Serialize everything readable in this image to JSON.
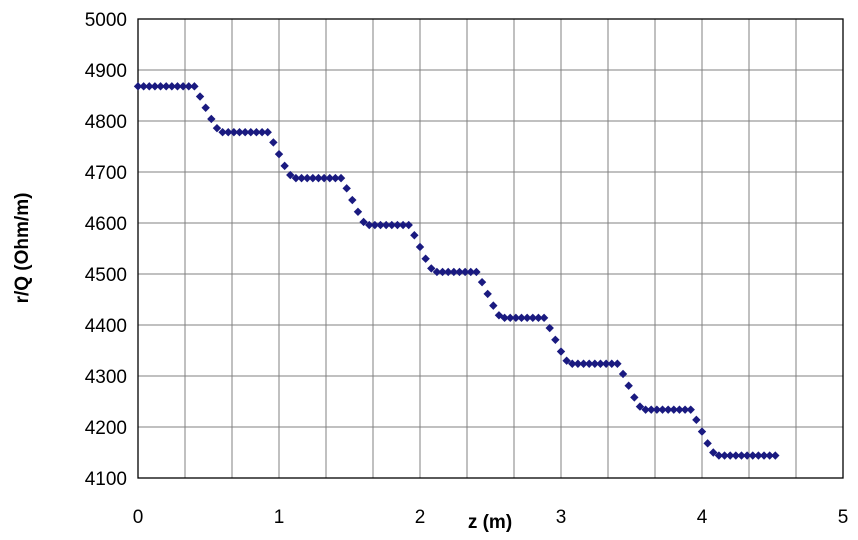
{
  "chart_data": {
    "type": "scatter",
    "title": "",
    "xlabel": "z (m)",
    "ylabel": "r/Q (Ohm/m)",
    "xlim": [
      0,
      5
    ],
    "ylim": [
      4100,
      5000
    ],
    "x_ticks": [
      "0",
      "1",
      "2",
      "3",
      "4",
      "5"
    ],
    "y_ticks": [
      "4100",
      "4200",
      "4300",
      "4400",
      "4500",
      "4600",
      "4700",
      "4800",
      "4900",
      "5000"
    ],
    "x_gridlines": 15,
    "y_gridlines": 9,
    "grid": true,
    "legend": "none",
    "colors": {
      "marker": "#1a1a80",
      "grid": "#808080",
      "plot_border": "#000000"
    },
    "marker": "diamond",
    "series": [
      {
        "values": [
          [
            0.0,
            4868
          ],
          [
            0.04,
            4868
          ],
          [
            0.08,
            4868
          ],
          [
            0.12,
            4868
          ],
          [
            0.16,
            4868
          ],
          [
            0.2,
            4868
          ],
          [
            0.24,
            4868
          ],
          [
            0.28,
            4868
          ],
          [
            0.32,
            4868
          ],
          [
            0.36,
            4868
          ],
          [
            0.4,
            4868
          ],
          [
            0.44,
            4848
          ],
          [
            0.48,
            4826
          ],
          [
            0.52,
            4804
          ],
          [
            0.56,
            4786
          ],
          [
            0.6,
            4778
          ],
          [
            0.64,
            4778
          ],
          [
            0.68,
            4778
          ],
          [
            0.72,
            4778
          ],
          [
            0.76,
            4778
          ],
          [
            0.8,
            4778
          ],
          [
            0.84,
            4778
          ],
          [
            0.88,
            4778
          ],
          [
            0.92,
            4778
          ],
          [
            0.96,
            4758
          ],
          [
            1.0,
            4735
          ],
          [
            1.04,
            4712
          ],
          [
            1.08,
            4694
          ],
          [
            1.12,
            4688
          ],
          [
            1.16,
            4688
          ],
          [
            1.2,
            4688
          ],
          [
            1.24,
            4688
          ],
          [
            1.28,
            4688
          ],
          [
            1.32,
            4688
          ],
          [
            1.36,
            4688
          ],
          [
            1.4,
            4688
          ],
          [
            1.44,
            4688
          ],
          [
            1.48,
            4668
          ],
          [
            1.52,
            4645
          ],
          [
            1.56,
            4622
          ],
          [
            1.6,
            4602
          ],
          [
            1.64,
            4596
          ],
          [
            1.68,
            4596
          ],
          [
            1.72,
            4596
          ],
          [
            1.76,
            4596
          ],
          [
            1.8,
            4596
          ],
          [
            1.84,
            4596
          ],
          [
            1.88,
            4596
          ],
          [
            1.92,
            4596
          ],
          [
            1.96,
            4576
          ],
          [
            2.0,
            4553
          ],
          [
            2.04,
            4530
          ],
          [
            2.08,
            4511
          ],
          [
            2.12,
            4504
          ],
          [
            2.16,
            4504
          ],
          [
            2.2,
            4504
          ],
          [
            2.24,
            4504
          ],
          [
            2.28,
            4504
          ],
          [
            2.32,
            4504
          ],
          [
            2.36,
            4504
          ],
          [
            2.4,
            4504
          ],
          [
            2.44,
            4484
          ],
          [
            2.48,
            4461
          ],
          [
            2.52,
            4438
          ],
          [
            2.56,
            4419
          ],
          [
            2.6,
            4414
          ],
          [
            2.64,
            4414
          ],
          [
            2.68,
            4414
          ],
          [
            2.72,
            4414
          ],
          [
            2.76,
            4414
          ],
          [
            2.8,
            4414
          ],
          [
            2.84,
            4414
          ],
          [
            2.88,
            4414
          ],
          [
            2.92,
            4394
          ],
          [
            2.96,
            4371
          ],
          [
            3.0,
            4348
          ],
          [
            3.04,
            4330
          ],
          [
            3.08,
            4324
          ],
          [
            3.12,
            4324
          ],
          [
            3.16,
            4324
          ],
          [
            3.2,
            4324
          ],
          [
            3.24,
            4324
          ],
          [
            3.28,
            4324
          ],
          [
            3.32,
            4324
          ],
          [
            3.36,
            4324
          ],
          [
            3.4,
            4324
          ],
          [
            3.44,
            4304
          ],
          [
            3.48,
            4281
          ],
          [
            3.52,
            4258
          ],
          [
            3.56,
            4240
          ],
          [
            3.6,
            4234
          ],
          [
            3.64,
            4234
          ],
          [
            3.68,
            4234
          ],
          [
            3.72,
            4234
          ],
          [
            3.76,
            4234
          ],
          [
            3.8,
            4234
          ],
          [
            3.84,
            4234
          ],
          [
            3.88,
            4234
          ],
          [
            3.92,
            4234
          ],
          [
            3.96,
            4214
          ],
          [
            4.0,
            4191
          ],
          [
            4.04,
            4168
          ],
          [
            4.08,
            4150
          ],
          [
            4.12,
            4144
          ],
          [
            4.16,
            4144
          ],
          [
            4.2,
            4144
          ],
          [
            4.24,
            4144
          ],
          [
            4.28,
            4144
          ],
          [
            4.32,
            4144
          ],
          [
            4.36,
            4144
          ],
          [
            4.4,
            4144
          ],
          [
            4.44,
            4144
          ],
          [
            4.48,
            4144
          ],
          [
            4.52,
            4144
          ]
        ]
      }
    ]
  }
}
